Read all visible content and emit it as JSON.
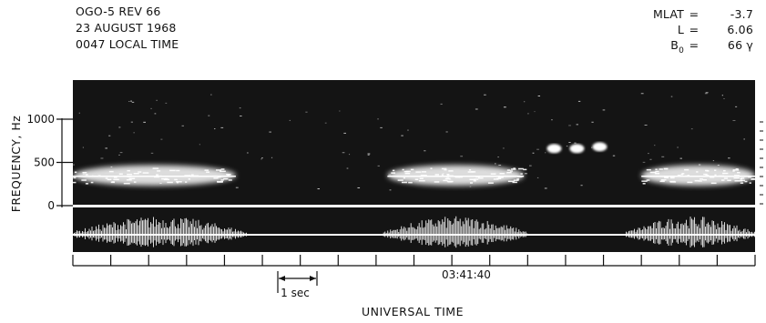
{
  "header": {
    "lines": [
      "OGO-5 REV 66",
      "23 AUGUST 1968",
      "0047 LOCAL TIME"
    ]
  },
  "params": [
    {
      "label": "MLAT",
      "eq": "=",
      "value": "-3.7"
    },
    {
      "label": "L",
      "eq": "=",
      "value": "6.06"
    },
    {
      "label": "B",
      "sub": "0",
      "eq": "=",
      "value": "66 γ"
    }
  ],
  "chart_data": {
    "type": "heatmap",
    "ylabel": "FREQUENCY, Hz",
    "xlabel": "UNIVERSAL TIME",
    "y_ticks": [
      0,
      500,
      1000
    ],
    "ylim": [
      0,
      1200
    ],
    "x_time_label": "03:41:40",
    "scale_bar_label": "1 sec",
    "x_tick_count": 18,
    "emission_bursts": [
      {
        "t_start_s": 0.0,
        "t_end_s": 4.3,
        "f_low_hz": 230,
        "f_high_hz": 470,
        "f_center_hz": 340
      },
      {
        "t_start_s": 8.3,
        "t_end_s": 11.9,
        "f_low_hz": 230,
        "f_high_hz": 470,
        "f_center_hz": 340
      },
      {
        "t_start_s": 15.0,
        "t_end_s": 18.0,
        "f_low_hz": 230,
        "f_high_hz": 470,
        "f_center_hz": 340
      }
    ],
    "discrete_emissions": [
      {
        "t_s": 12.7,
        "f_hz": 660
      },
      {
        "t_s": 13.3,
        "f_hz": 660
      },
      {
        "t_s": 13.9,
        "f_hz": 680
      }
    ],
    "broadband_bursts": [
      {
        "t_start_s": 0.0,
        "t_end_s": 4.6
      },
      {
        "t_start_s": 8.2,
        "t_end_s": 12.0
      },
      {
        "t_start_s": 14.6,
        "t_end_s": 18.0
      }
    ]
  },
  "colors": {
    "spectrogram_bg": "#141414",
    "emission": "#ffffff",
    "text": "#111111"
  }
}
